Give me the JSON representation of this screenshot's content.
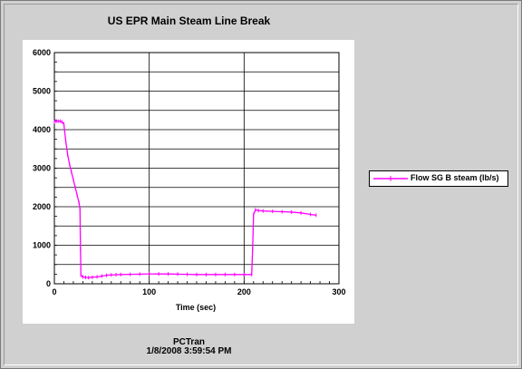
{
  "window": {
    "title": "US EPR Main Steam Line Break",
    "footer_app": "PCTran",
    "footer_date": "1/8/2008 3:59:54 PM"
  },
  "colors": {
    "series": "#ff00ff",
    "grid": "#000000",
    "background": "#d0d0d0"
  },
  "chart_data": {
    "type": "line",
    "title": "US EPR Main Steam Line Break",
    "xlabel": "Time (sec)",
    "ylabel": "",
    "xlim": [
      0,
      300
    ],
    "ylim": [
      0,
      6000
    ],
    "xticks": [
      0,
      100,
      200,
      300
    ],
    "yticks": [
      0,
      1000,
      2000,
      3000,
      4000,
      5000,
      6000
    ],
    "grid": true,
    "legend": "right",
    "series": [
      {
        "name": "Flow SG B steam (lb/s)",
        "x": [
          0,
          2,
          4,
          6,
          8,
          10,
          12,
          14,
          16,
          18,
          20,
          22,
          24,
          26,
          27,
          27.5,
          28,
          30,
          33,
          36,
          40,
          45,
          50,
          55,
          60,
          65,
          70,
          80,
          90,
          100,
          110,
          120,
          130,
          140,
          150,
          160,
          170,
          180,
          190,
          200,
          208,
          209,
          210,
          212,
          215,
          220,
          230,
          240,
          250,
          260,
          270,
          276
        ],
        "y": [
          4200,
          4220,
          4220,
          4220,
          4200,
          4150,
          3700,
          3350,
          3100,
          2900,
          2700,
          2500,
          2300,
          2100,
          1950,
          900,
          220,
          180,
          165,
          160,
          170,
          180,
          200,
          220,
          230,
          235,
          240,
          245,
          250,
          255,
          255,
          255,
          250,
          245,
          240,
          240,
          240,
          240,
          240,
          240,
          240,
          900,
          1800,
          1920,
          1900,
          1890,
          1880,
          1870,
          1860,
          1840,
          1800,
          1780
        ]
      }
    ]
  }
}
